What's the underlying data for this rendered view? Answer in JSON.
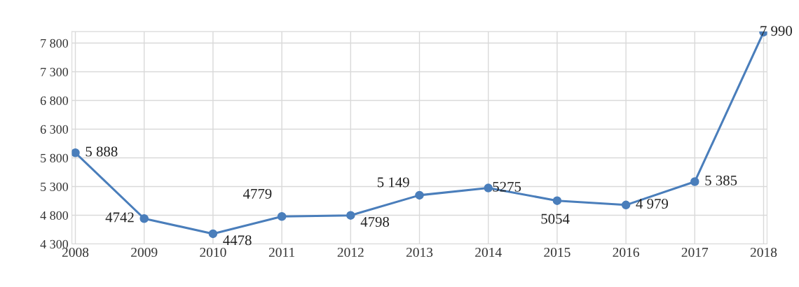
{
  "chart_data": {
    "type": "line",
    "categories": [
      "2008",
      "2009",
      "2010",
      "2011",
      "2012",
      "2013",
      "2014",
      "2015",
      "2016",
      "2017",
      "2018"
    ],
    "series": [
      {
        "color": "#4a7ebb",
        "values": [
          5888,
          4742,
          4478,
          4779,
          4798,
          5149,
          5275,
          5054,
          4979,
          5385,
          7990
        ],
        "value_labels": [
          "5 888",
          "4742",
          "4478",
          "4779",
          "4798",
          "5 149",
          "5275",
          "5054",
          "4 979",
          "5 385",
          "7 990"
        ]
      }
    ],
    "ylim": [
      4300,
      8000
    ],
    "yticks": [
      {
        "value": 4300,
        "label": "4 300"
      },
      {
        "value": 4800,
        "label": "4 800"
      },
      {
        "value": 5300,
        "label": "5 300"
      },
      {
        "value": 5800,
        "label": "5 800"
      },
      {
        "value": 6300,
        "label": "6 300"
      },
      {
        "value": 6800,
        "label": "6 800"
      },
      {
        "value": 7300,
        "label": "7 300"
      },
      {
        "value": 7800,
        "label": "7 800"
      }
    ],
    "grid": true,
    "marker": "circle",
    "line_style": "solid"
  }
}
